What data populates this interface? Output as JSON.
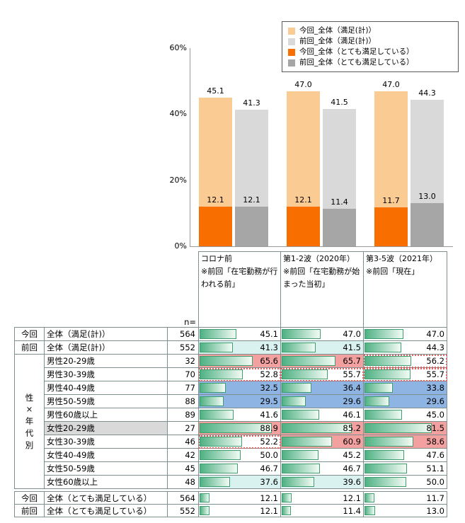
{
  "legend": {
    "items": [
      {
        "label": "今回_全体（満足(計)）",
        "color": "#FBCB94"
      },
      {
        "label": "前回_全体（満足(計)）",
        "color": "#D9D9D9"
      },
      {
        "label": "今回_全体（とても満足している）",
        "color": "#F86F00"
      },
      {
        "label": "前回_全体（とても満足している）",
        "color": "#A6A6A6"
      }
    ]
  },
  "chart_data": {
    "type": "bar",
    "categories": [
      "コロナ前",
      "第1-2波（2020年）",
      "第3-5波（2021年）"
    ],
    "series": [
      {
        "name": "今回_全体（満足(計)）",
        "color": "#FBCB94",
        "values": [
          45.1,
          47.0,
          47.0
        ]
      },
      {
        "name": "前回_全体（満足(計)）",
        "color": "#D9D9D9",
        "values": [
          41.3,
          41.5,
          44.3
        ]
      },
      {
        "name": "今回_全体（とても満足している）",
        "color": "#F86F00",
        "values": [
          12.1,
          12.1,
          11.7
        ]
      },
      {
        "name": "前回_全体（とても満足している）",
        "color": "#A6A6A6",
        "values": [
          12.1,
          11.4,
          13.0
        ]
      }
    ],
    "ylim": [
      0,
      60
    ],
    "yticks": [
      {
        "value": 0,
        "label": "0%"
      },
      {
        "value": 20,
        "label": "20%"
      },
      {
        "value": 40,
        "label": "40%"
      },
      {
        "value": 60,
        "label": "60%"
      }
    ],
    "grid": false,
    "legend_position": "top-right"
  },
  "table": {
    "n_label": "n=",
    "group_label": "性×年代別",
    "bar_scale_max": 100,
    "column_headers": [
      {
        "title": "コロナ前",
        "note": "※前回「在宅勤務が行われる前」"
      },
      {
        "title": "第1-2波（2020年）",
        "note": "※前回「在宅勤務が始まった当初」"
      },
      {
        "title": "第3-5波（2021年）",
        "note": "※前回「現在」"
      }
    ],
    "rows": [
      {
        "group": "今回",
        "label": "全体（満足(計)）",
        "n": 564,
        "values": [
          45.1,
          47.0,
          47.0
        ],
        "styles": [
          "",
          "",
          ""
        ]
      },
      {
        "group": "前回",
        "label": "全体（満足(計)）",
        "n": 552,
        "values": [
          41.3,
          41.5,
          44.3
        ],
        "styles": [
          "cyan",
          "cyan",
          ""
        ]
      },
      {
        "label": "男性20-29歳",
        "n": 32,
        "values": [
          65.6,
          65.7,
          56.2
        ],
        "styles": [
          "red",
          "red",
          "dotted"
        ]
      },
      {
        "label": "男性30-39歳",
        "n": 70,
        "values": [
          52.8,
          55.7,
          55.7
        ],
        "styles": [
          "dotted",
          "dotted",
          "dotted"
        ]
      },
      {
        "label": "男性40-49歳",
        "n": 77,
        "values": [
          32.5,
          36.4,
          33.8
        ],
        "styles": [
          "blue",
          "blue",
          "blue"
        ]
      },
      {
        "label": "男性50-59歳",
        "n": 88,
        "values": [
          29.5,
          29.6,
          29.6
        ],
        "styles": [
          "blue",
          "blue",
          "blue"
        ]
      },
      {
        "label": "男性60歳以上",
        "n": 89,
        "values": [
          41.6,
          46.1,
          45.0
        ],
        "styles": [
          "",
          "",
          ""
        ]
      },
      {
        "label": "女性20-29歳",
        "n": 27,
        "values": [
          88.9,
          85.2,
          81.5
        ],
        "styles": [
          "red",
          "red",
          "red"
        ],
        "label_bg": "gray"
      },
      {
        "label": "女性30-39歳",
        "n": 46,
        "values": [
          52.2,
          60.9,
          58.6
        ],
        "styles": [
          "dotted",
          "red",
          "red"
        ]
      },
      {
        "label": "女性40-49歳",
        "n": 42,
        "values": [
          50.0,
          45.2,
          47.6
        ],
        "styles": [
          "",
          "",
          ""
        ]
      },
      {
        "label": "女性50-59歳",
        "n": 45,
        "values": [
          46.7,
          46.7,
          51.1
        ],
        "styles": [
          "",
          "",
          ""
        ]
      },
      {
        "label": "女性60歳以上",
        "n": 48,
        "values": [
          37.6,
          39.6,
          50.0
        ],
        "styles": [
          "cyan",
          "cyan",
          ""
        ]
      }
    ],
    "bottom_rows": [
      {
        "group": "今回",
        "label": "全体（とても満足している）",
        "n": 564,
        "values": [
          12.1,
          12.1,
          11.7
        ],
        "styles": [
          "",
          "",
          ""
        ]
      },
      {
        "group": "前回",
        "label": "全体（とても満足している）",
        "n": 552,
        "values": [
          12.1,
          11.4,
          13.0
        ],
        "styles": [
          "",
          "",
          ""
        ]
      }
    ]
  },
  "highlight_colors": {
    "red": "#F2A0A0",
    "blue": "#8DB4E2",
    "cyan": "#D9F2F0",
    "label_gray": "#D9D9D9",
    "dotted_border": "#E06666",
    "databar_green": "#4FB183"
  }
}
